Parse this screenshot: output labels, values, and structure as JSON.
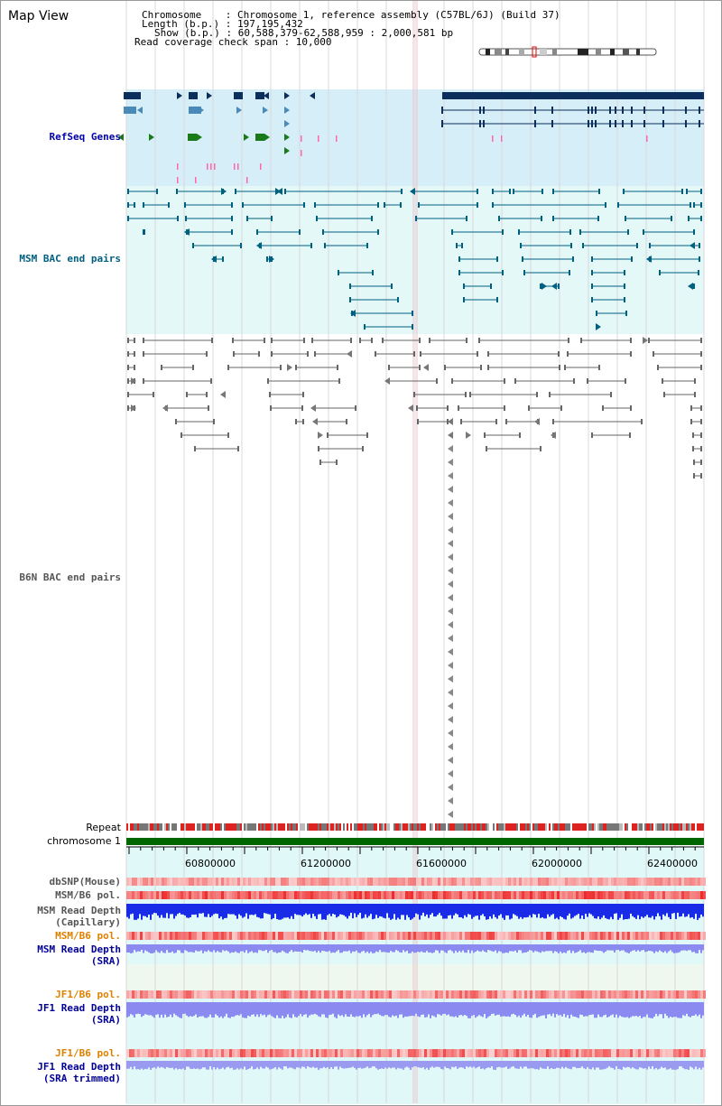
{
  "header": {
    "title": "Map View",
    "chromosome": "Chromosome    : Chromosome 1, reference assembly (C57BL/6J) (Build 37)",
    "length": "Length (b.p.) : 197,195,432",
    "show": "Show (b.p.) : 60,588,379-62,588,959 : 2,000,581 bp",
    "coverage": "Read coverage check span : 10,000"
  },
  "tracks": {
    "refseq": "RefSeq Genes",
    "msm_bac": "MSM BAC end pairs",
    "b6n_bac": "B6N BAC end pairs",
    "repeat": "Repeat",
    "chromosome": "chromosome 1",
    "dbsnp": "dbSNP(Mouse)",
    "msm_b6_pol": "MSM/B6 pol.",
    "msm_depth_cap_1": "MSM Read Depth",
    "msm_depth_cap_2": "(Capillary)",
    "msm_b6_pol_sra": "MSM/B6 pol.",
    "msm_depth_sra_1": "MSM Read Depth",
    "msm_depth_sra_2": "(SRA)",
    "jf1_b6_pol": "JF1/B6 pol.",
    "jf1_depth_1": "JF1 Read Depth",
    "jf1_depth_2": "(SRA)",
    "jf1_b6_pol_trim": "JF1/B6 pol.",
    "jf1_depth_trim_1": "JF1 Read Depth",
    "jf1_depth_trim_2": "(SRA trimmed)"
  },
  "axis": {
    "ticks": [
      "60800000",
      "61200000",
      "61600000",
      "62000000",
      "62400000"
    ]
  },
  "colors": {
    "refseq_label": "#0000aa",
    "msm_label": "#006080",
    "b6n_label": "#555555",
    "pol_label_orange": "#e08000",
    "depth_label": "#000099",
    "chromosome_bar": "#006600",
    "refseq_bg": "#d6eef8",
    "msm_bg": "#e4f8f8",
    "lower_bg": "#e0f8f8",
    "msm_gene": "#006080",
    "b6n_gene": "#555555"
  }
}
